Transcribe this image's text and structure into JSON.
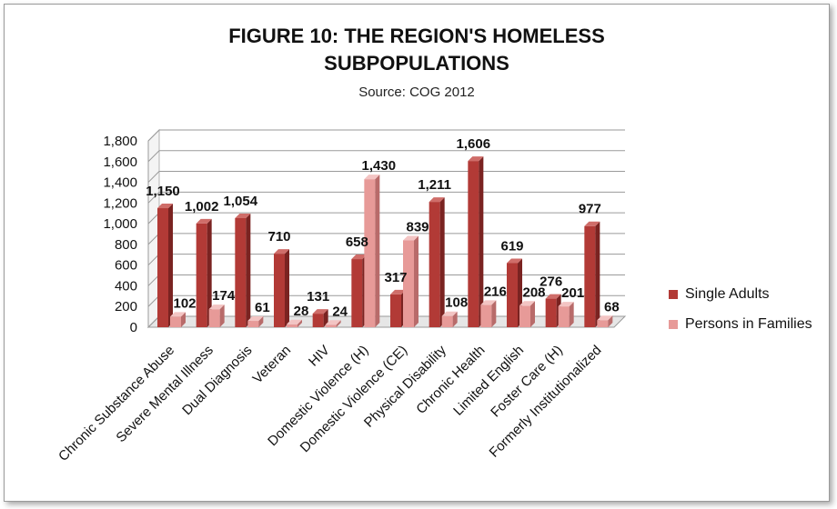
{
  "chart_data": {
    "type": "bar",
    "title_line1": "FIGURE 10: THE REGION'S HOMELESS",
    "title_line2": "SUBPOPULATIONS",
    "subtitle": "Source: COG 2012",
    "categories": [
      "Chronic Substance Abuse",
      "Severe Mental Illness",
      "Dual Diagnosis",
      "Veteran",
      "HIV",
      "Domestic Violence (H)",
      "Domestic Violence (CE)",
      "Physical Disability",
      "Chronic Health",
      "Limited English",
      "Foster Care (H)",
      "Formerly Institutionalized"
    ],
    "series": [
      {
        "name": "Single Adults",
        "values": [
          1150,
          1002,
          1054,
          710,
          131,
          658,
          317,
          1211,
          1606,
          619,
          276,
          977
        ],
        "labels": [
          "1,150",
          "1,002",
          "1,054",
          "710",
          "131",
          "658",
          "317",
          "1,211",
          "1,606",
          "619",
          "276",
          "977"
        ],
        "color": "#b23a36"
      },
      {
        "name": "Persons in Families",
        "values": [
          102,
          174,
          61,
          28,
          24,
          1430,
          839,
          108,
          216,
          208,
          201,
          68
        ],
        "labels": [
          "102",
          "174",
          "61",
          "28",
          "24",
          "1,430",
          "839",
          "108",
          "216",
          "208",
          "201",
          "68"
        ],
        "color": "#e79a98"
      }
    ],
    "y_ticks": [
      "0",
      "200",
      "400",
      "600",
      "800",
      "1,000",
      "1,200",
      "1,400",
      "1,600",
      "1,800"
    ],
    "ylim": [
      0,
      1800
    ],
    "grid": true,
    "legend_position": "right"
  },
  "colors": {
    "single_front": "#b23a36",
    "single_side": "#7a2321",
    "single_top": "#cf6d69",
    "family_front": "#e79a98",
    "family_side": "#b86b6a",
    "family_top": "#f3c4c3"
  }
}
